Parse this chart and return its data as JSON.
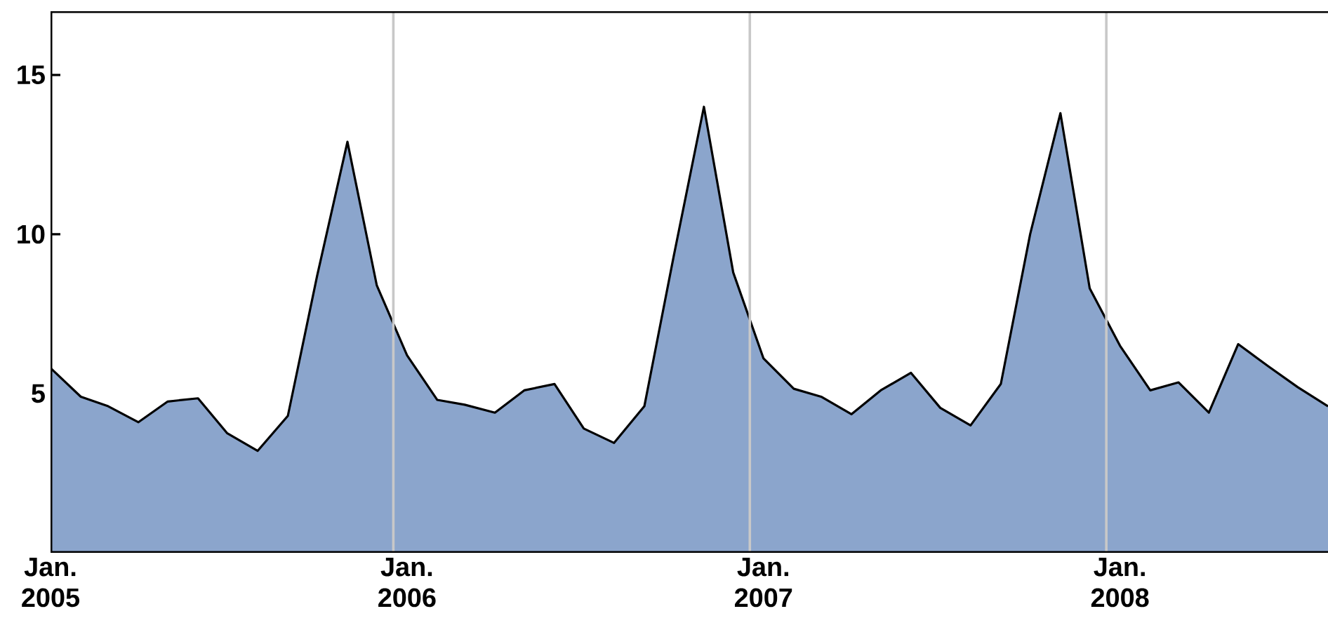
{
  "chart_data": {
    "type": "area",
    "x": [
      "2005-01-15",
      "2005-02-15",
      "2005-03-15",
      "2005-04-15",
      "2005-05-15",
      "2005-06-15",
      "2005-07-15",
      "2005-08-15",
      "2005-09-15",
      "2005-10-15",
      "2005-11-15",
      "2005-12-15",
      "2006-01-15",
      "2006-02-15",
      "2006-03-15",
      "2006-04-15",
      "2006-05-15",
      "2006-06-15",
      "2006-07-15",
      "2006-08-15",
      "2006-09-15",
      "2006-10-15",
      "2006-11-15",
      "2006-12-15",
      "2007-01-15",
      "2007-02-15",
      "2007-03-15",
      "2007-04-15",
      "2007-05-15",
      "2007-06-15",
      "2007-07-15",
      "2007-08-15",
      "2007-09-15",
      "2007-10-15",
      "2007-11-15",
      "2007-12-15",
      "2008-01-15",
      "2008-02-15",
      "2008-03-15",
      "2008-04-15",
      "2008-05-15",
      "2008-06-15",
      "2008-07-15",
      "2008-08-15"
    ],
    "series": [
      {
        "color": "#8ba5cc",
        "values": [
          5.8,
          4.9,
          4.6,
          4.1,
          4.75,
          4.85,
          3.75,
          3.2,
          4.3,
          8.7,
          12.9,
          8.4,
          6.2,
          4.8,
          4.65,
          4.4,
          5.1,
          5.3,
          3.9,
          3.45,
          4.6,
          9.3,
          14.0,
          8.8,
          6.1,
          5.15,
          4.9,
          4.35,
          5.1,
          5.65,
          4.55,
          4.0,
          5.3,
          10.0,
          13.8,
          8.3,
          6.5,
          5.1,
          5.35,
          4.4,
          6.55,
          5.85,
          5.2,
          4.6
        ]
      }
    ],
    "xlim": [
      "2005-01-15",
      "2008-08-15"
    ],
    "xticks": [
      {
        "value": "2005-01-15",
        "label": "Jan. 2005"
      },
      {
        "value": "2005-02-01",
        "label": null
      },
      {
        "value": "2005-03-01",
        "label": null
      },
      {
        "value": "2005-04-01",
        "label": null
      },
      {
        "value": "2005-05-01",
        "label": null
      },
      {
        "value": "2005-06-01",
        "label": null
      },
      {
        "value": "2005-07-01",
        "label": null
      },
      {
        "value": "2005-08-01",
        "label": null
      },
      {
        "value": "2005-09-01",
        "label": null
      },
      {
        "value": "2005-10-01",
        "label": null
      },
      {
        "value": "2005-11-01",
        "label": null
      },
      {
        "value": "2005-12-01",
        "label": null
      },
      {
        "value": "2006-01-01",
        "label": null
      },
      {
        "value": "2006-01-15",
        "label": "Jan. 2006"
      },
      {
        "value": "2006-02-01",
        "label": null
      },
      {
        "value": "2006-03-01",
        "label": null
      },
      {
        "value": "2006-04-01",
        "label": null
      },
      {
        "value": "2006-05-01",
        "label": null
      },
      {
        "value": "2006-06-01",
        "label": null
      },
      {
        "value": "2006-07-01",
        "label": null
      },
      {
        "value": "2006-08-01",
        "label": null
      },
      {
        "value": "2006-09-01",
        "label": null
      },
      {
        "value": "2006-10-01",
        "label": null
      },
      {
        "value": "2006-11-01",
        "label": null
      },
      {
        "value": "2006-12-01",
        "label": null
      },
      {
        "value": "2007-01-01",
        "label": null
      },
      {
        "value": "2007-01-15",
        "label": "Jan. 2007"
      },
      {
        "value": "2007-02-01",
        "label": null
      },
      {
        "value": "2007-03-01",
        "label": null
      },
      {
        "value": "2007-04-01",
        "label": null
      },
      {
        "value": "2007-05-01",
        "label": null
      },
      {
        "value": "2007-06-01",
        "label": null
      },
      {
        "value": "2007-07-01",
        "label": null
      },
      {
        "value": "2007-08-01",
        "label": null
      },
      {
        "value": "2007-09-01",
        "label": null
      },
      {
        "value": "2007-10-01",
        "label": null
      },
      {
        "value": "2007-11-01",
        "label": null
      },
      {
        "value": "2007-12-01",
        "label": null
      },
      {
        "value": "2008-01-01",
        "label": null
      },
      {
        "value": "2008-01-15",
        "label": "Jan. 2008"
      },
      {
        "value": "2008-02-01",
        "label": null
      },
      {
        "value": "2008-03-01",
        "label": null
      },
      {
        "value": "2008-04-01",
        "label": null
      },
      {
        "value": "2008-05-01",
        "label": null
      },
      {
        "value": "2008-06-01",
        "label": null
      },
      {
        "value": "2008-07-01",
        "label": null
      },
      {
        "value": "2008-08-01",
        "label": null
      }
    ],
    "ylim": [
      0,
      17
    ],
    "yticks": [
      5,
      10,
      15
    ],
    "ref_lines": [
      {
        "axis": "x",
        "value": "2006-01-01",
        "color": "#c8c8c8"
      },
      {
        "axis": "x",
        "value": "2007-01-01",
        "color": "#c8c8c8"
      },
      {
        "axis": "x",
        "value": "2008-01-01",
        "color": "#c8c8c8"
      }
    ]
  }
}
